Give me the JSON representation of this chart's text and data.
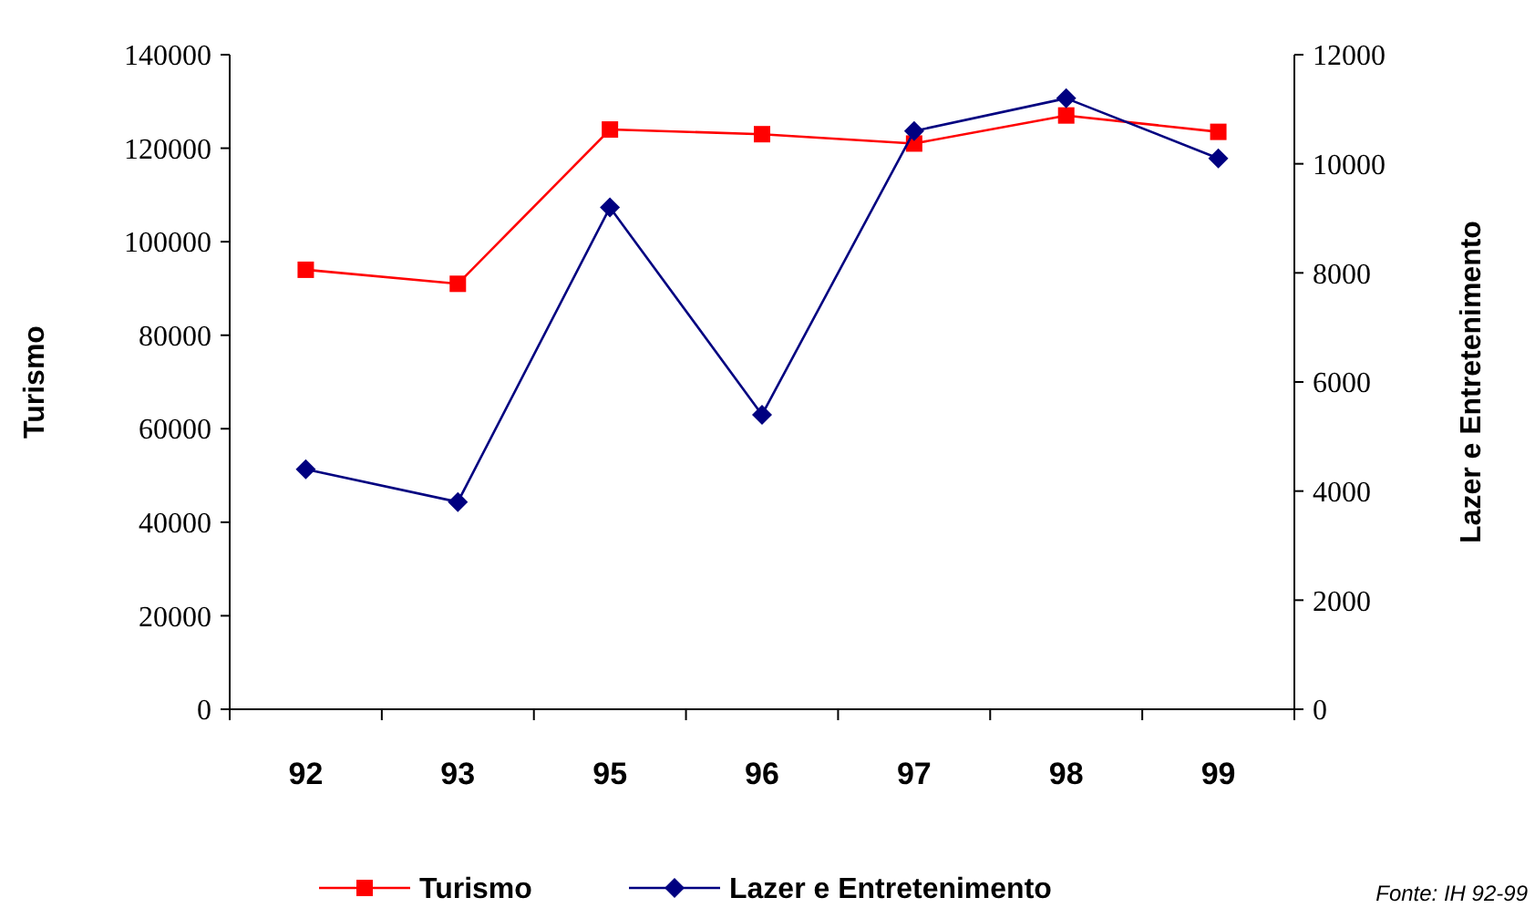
{
  "chart_data": {
    "type": "line",
    "ylabel": "Turismo",
    "y2label": "Lazer e Entretenimento",
    "categories": [
      "92",
      "93",
      "95",
      "96",
      "97",
      "98",
      "99"
    ],
    "series": [
      {
        "name": "Turismo",
        "color": "#ff0000",
        "marker": "square",
        "values": [
          94000,
          91000,
          124000,
          123000,
          121000,
          127000,
          123500
        ]
      },
      {
        "name": "Lazer e Entretenimento",
        "color": "#000080",
        "marker": "diamond",
        "axis": "y2",
        "values": [
          4400,
          3800,
          9200,
          5400,
          10600,
          11200,
          10100
        ]
      }
    ],
    "ylim": [
      0,
      140000
    ],
    "yticks": [
      0,
      20000,
      40000,
      60000,
      80000,
      100000,
      120000,
      140000
    ],
    "y2lim": [
      0,
      12000
    ],
    "y2ticks": [
      0,
      2000,
      4000,
      6000,
      8000,
      10000,
      12000
    ],
    "grid": false,
    "legend": "bottom",
    "line_style": "solid",
    "annotations": [
      "Fonte: IH 92-99"
    ]
  }
}
